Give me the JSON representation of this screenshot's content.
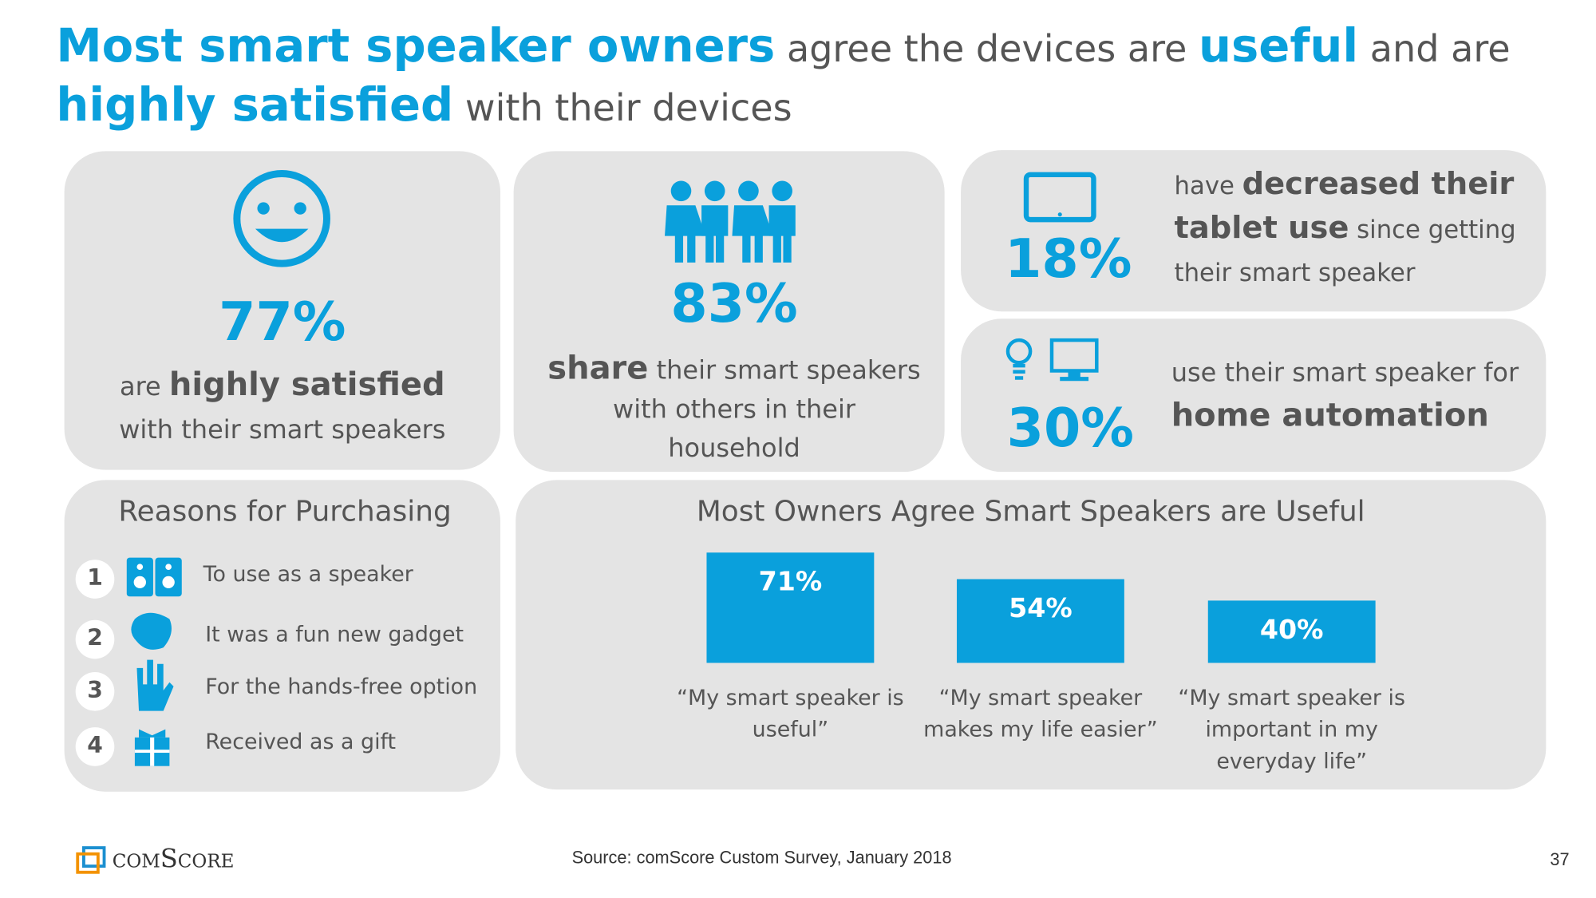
{
  "header": {
    "title": [
      {
        "text": "Most smart speaker owners",
        "bold": true
      },
      {
        "text": " agree the devices are ",
        "bold": false
      },
      {
        "text": "useful",
        "bold": true
      },
      {
        "text": " and are ",
        "bold": false
      },
      {
        "text": "highly satisfied",
        "bold": true
      },
      {
        "text": " with their devices",
        "bold": false
      }
    ]
  },
  "cards": [
    {
      "number": "77%",
      "text": [
        {
          "text": "are ",
          "bold": false
        },
        {
          "text": "highly satisfied",
          "bold": true
        },
        {
          "text": " with their smart speakers",
          "bold": false
        }
      ]
    },
    {
      "number": "83%",
      "text": [
        {
          "text": "share",
          "bold": true
        },
        {
          "text": " their smart speakers with others in their household",
          "bold": false
        }
      ]
    },
    {
      "number": "18%",
      "text": [
        {
          "text": "have ",
          "bold": false
        },
        {
          "text": "decreased their tablet use",
          "bold": true
        },
        {
          "text": " since getting their smart speaker",
          "bold": false
        }
      ]
    },
    {
      "number": "30%",
      "text": [
        {
          "text": "use their smart speaker for ",
          "bold": false
        },
        {
          "text": "home automation",
          "bold": true
        }
      ]
    }
  ],
  "reasons": {
    "title": "Reasons for Purchasing",
    "items": [
      {
        "rank": 1,
        "text": "To use as a speaker"
      },
      {
        "rank": 2,
        "text": "It was a fun new gadget"
      },
      {
        "rank": 3,
        "text": "For the hands-free option"
      },
      {
        "rank": 4,
        "text": "Received as a gift"
      }
    ]
  },
  "chart": {
    "type": "bar",
    "title": "Most Owners Agree Smart Speakers are Useful",
    "color": "#0aa0dc",
    "categories": [
      "“My smart speaker is useful”",
      "“My smart speaker makes my life easier”",
      "“My smart speaker is important in my everyday life”"
    ],
    "values": [
      71,
      54,
      40
    ],
    "value_labels": [
      "71%",
      "54%",
      "40%"
    ]
  },
  "footer": {
    "logo": "comScore",
    "source": "Source: comScore Custom Survey, January 2018",
    "page": "37"
  }
}
